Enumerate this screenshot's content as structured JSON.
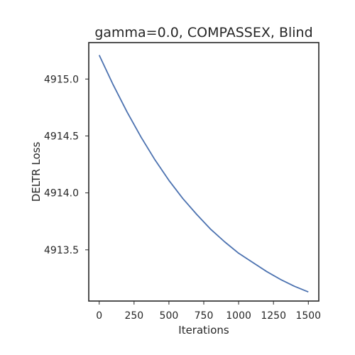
{
  "chart_data": {
    "type": "line",
    "title": "gamma=0.0, COMPASSEX, Blind",
    "xlabel": "Iterations",
    "ylabel": "DELTR Loss",
    "xlim": [
      -75,
      1575
    ],
    "ylim": [
      4913.05,
      4915.32
    ],
    "xticks": [
      0,
      250,
      500,
      750,
      1000,
      1250,
      1500
    ],
    "xtick_labels": [
      "0",
      "250",
      "500",
      "750",
      "1000",
      "1250",
      "1500"
    ],
    "yticks": [
      4913.5,
      4914.0,
      4914.5,
      4915.0
    ],
    "ytick_labels": [
      "4913.5",
      "4914.0",
      "4914.5",
      "4915.0"
    ],
    "grid": false,
    "color": "#4c72b0",
    "series": [
      {
        "x": [
          0,
          100,
          200,
          300,
          400,
          500,
          600,
          700,
          800,
          900,
          1000,
          1100,
          1200,
          1300,
          1400,
          1500
        ],
        "values": [
          4915.21,
          4914.95,
          4914.71,
          4914.49,
          4914.29,
          4914.11,
          4913.95,
          4913.81,
          4913.68,
          4913.57,
          4913.47,
          4913.39,
          4913.31,
          4913.24,
          4913.18,
          4913.13
        ]
      }
    ]
  }
}
